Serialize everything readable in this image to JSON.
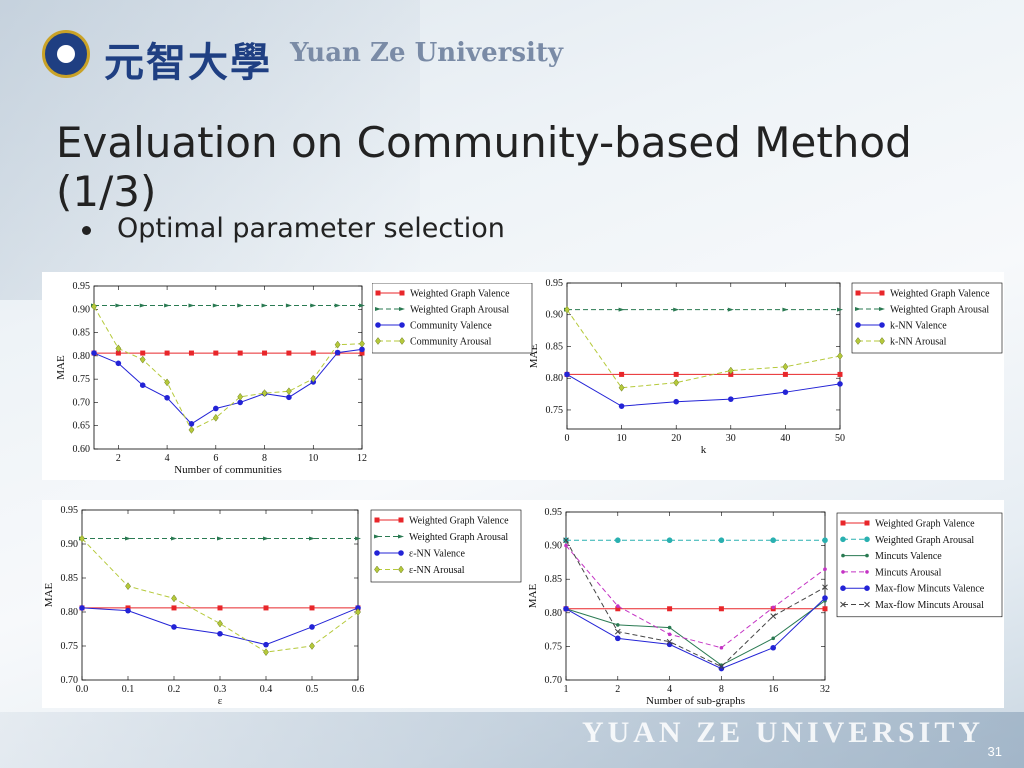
{
  "slide": {
    "title": "Evaluation on Community-based Method (1/3)",
    "bullet": "Optimal parameter selection",
    "logo_cn": "元智大學",
    "logo_en": "Yuan Ze University",
    "footer": "YUAN ZE UNIVERSITY",
    "page_number": "31"
  },
  "chart_data": [
    {
      "type": "line",
      "xlabel": "Number of communities",
      "ylabel": "MAE",
      "xlim": [
        1,
        12
      ],
      "ylim": [
        0.6,
        0.95
      ],
      "xticks": [
        2,
        4,
        6,
        8,
        10,
        12
      ],
      "yticks": [
        0.6,
        0.65,
        0.7,
        0.75,
        0.8,
        0.85,
        0.9,
        0.95
      ],
      "x": [
        1,
        2,
        3,
        4,
        5,
        6,
        7,
        8,
        9,
        10,
        11,
        12
      ],
      "legend_position": "top-right",
      "series": [
        {
          "name": "Weighted Graph Valence",
          "color": "#e8262a",
          "dash": "",
          "marker": "square",
          "values": [
            0.806,
            0.806,
            0.806,
            0.806,
            0.806,
            0.806,
            0.806,
            0.806,
            0.806,
            0.806,
            0.806,
            0.806
          ]
        },
        {
          "name": "Weighted Graph Arousal",
          "color": "#2a7a52",
          "dash": "5,3",
          "marker": "tri",
          "values": [
            0.908,
            0.908,
            0.908,
            0.908,
            0.908,
            0.908,
            0.908,
            0.908,
            0.908,
            0.908,
            0.908,
            0.908
          ]
        },
        {
          "name": "Community Valence",
          "color": "#2323d6",
          "dash": "",
          "marker": "circle",
          "values": [
            0.806,
            0.784,
            0.737,
            0.71,
            0.654,
            0.687,
            0.7,
            0.719,
            0.711,
            0.744,
            0.807,
            0.814
          ]
        },
        {
          "name": "Community Arousal",
          "color": "#b5c93a",
          "dash": "5,3",
          "marker": "diamond",
          "values": [
            0.906,
            0.816,
            0.792,
            0.743,
            0.641,
            0.667,
            0.712,
            0.72,
            0.724,
            0.751,
            0.824,
            0.826
          ]
        }
      ]
    },
    {
      "type": "line",
      "xlabel": "k",
      "ylabel": "MAE",
      "xlim": [
        0,
        50
      ],
      "ylim": [
        0.72,
        0.95
      ],
      "xticks": [
        0,
        10,
        20,
        30,
        40,
        50
      ],
      "yticks": [
        0.75,
        0.8,
        0.85,
        0.9,
        0.95
      ],
      "x": [
        0,
        10,
        20,
        30,
        40,
        50
      ],
      "legend_position": "top-right",
      "series": [
        {
          "name": "Weighted Graph Valence",
          "color": "#e8262a",
          "dash": "",
          "marker": "square",
          "values": [
            0.806,
            0.806,
            0.806,
            0.806,
            0.806,
            0.806
          ]
        },
        {
          "name": "Weighted Graph Arousal",
          "color": "#2a7a52",
          "dash": "5,3",
          "marker": "tri",
          "values": [
            0.908,
            0.908,
            0.908,
            0.908,
            0.908,
            0.908
          ]
        },
        {
          "name": "k-NN Valence",
          "color": "#2323d6",
          "dash": "",
          "marker": "circle",
          "values": [
            0.806,
            0.756,
            0.763,
            0.767,
            0.778,
            0.791
          ]
        },
        {
          "name": "k-NN Arousal",
          "color": "#b5c93a",
          "dash": "5,3",
          "marker": "diamond",
          "values": [
            0.908,
            0.785,
            0.793,
            0.812,
            0.818,
            0.835
          ]
        }
      ]
    },
    {
      "type": "line",
      "xlabel": "ε",
      "ylabel": "MAE",
      "xlim": [
        0.0,
        0.6
      ],
      "ylim": [
        0.7,
        0.95
      ],
      "xticks": [
        "0.0",
        "0.1",
        "0.2",
        "0.3",
        "0.4",
        "0.5",
        "0.6"
      ],
      "yticks": [
        0.7,
        0.75,
        0.8,
        0.85,
        0.9,
        0.95
      ],
      "x": [
        0.0,
        0.1,
        0.2,
        0.3,
        0.4,
        0.5,
        0.6
      ],
      "legend_position": "top-right",
      "series": [
        {
          "name": "Weighted Graph Valence",
          "color": "#e8262a",
          "dash": "",
          "marker": "square",
          "values": [
            0.806,
            0.806,
            0.806,
            0.806,
            0.806,
            0.806,
            0.806
          ]
        },
        {
          "name": "Weighted Graph Arousal",
          "color": "#2a7a52",
          "dash": "5,3",
          "marker": "tri",
          "values": [
            0.908,
            0.908,
            0.908,
            0.908,
            0.908,
            0.908,
            0.908
          ]
        },
        {
          "name": "ε-NN Valence",
          "color": "#2323d6",
          "dash": "",
          "marker": "circle",
          "values": [
            0.806,
            0.802,
            0.778,
            0.768,
            0.752,
            0.778,
            0.806
          ]
        },
        {
          "name": "ε-NN Arousal",
          "color": "#b5c93a",
          "dash": "5,3",
          "marker": "diamond",
          "values": [
            0.908,
            0.838,
            0.82,
            0.783,
            0.741,
            0.75,
            0.8
          ]
        }
      ]
    },
    {
      "type": "line",
      "xlabel": "Number of sub-graphs",
      "ylabel": "MAE",
      "xlim": [
        1,
        32
      ],
      "x_scale": "log2",
      "ylim": [
        0.7,
        0.95
      ],
      "xticks": [
        1,
        2,
        4,
        8,
        16,
        32
      ],
      "yticks": [
        0.7,
        0.75,
        0.8,
        0.85,
        0.9,
        0.95
      ],
      "x": [
        1,
        2,
        4,
        8,
        16,
        32
      ],
      "legend_position": "top-right",
      "series": [
        {
          "name": "Weighted Graph Valence",
          "color": "#e8262a",
          "dash": "",
          "marker": "square",
          "values": [
            0.806,
            0.806,
            0.806,
            0.806,
            0.806,
            0.806
          ]
        },
        {
          "name": "Weighted Graph Arousal",
          "color": "#29b0b0",
          "dash": "5,3",
          "marker": "circle",
          "values": [
            0.908,
            0.908,
            0.908,
            0.908,
            0.908,
            0.908
          ]
        },
        {
          "name": "Mincuts Valence",
          "color": "#2a7a52",
          "dash": "",
          "marker": "dot",
          "values": [
            0.806,
            0.782,
            0.778,
            0.722,
            0.762,
            0.818
          ]
        },
        {
          "name": "Mincuts Arousal",
          "color": "#c433c4",
          "dash": "5,3",
          "marker": "dot",
          "values": [
            0.9,
            0.81,
            0.768,
            0.748,
            0.808,
            0.865
          ]
        },
        {
          "name": "Max-flow Mincuts Valence",
          "color": "#2323d6",
          "dash": "",
          "marker": "circle",
          "values": [
            0.806,
            0.762,
            0.753,
            0.717,
            0.748,
            0.822
          ]
        },
        {
          "name": "Max-flow Mincuts Arousal",
          "color": "#444444",
          "dash": "5,3",
          "marker": "x",
          "values": [
            0.908,
            0.772,
            0.757,
            0.72,
            0.795,
            0.838
          ]
        }
      ]
    }
  ]
}
